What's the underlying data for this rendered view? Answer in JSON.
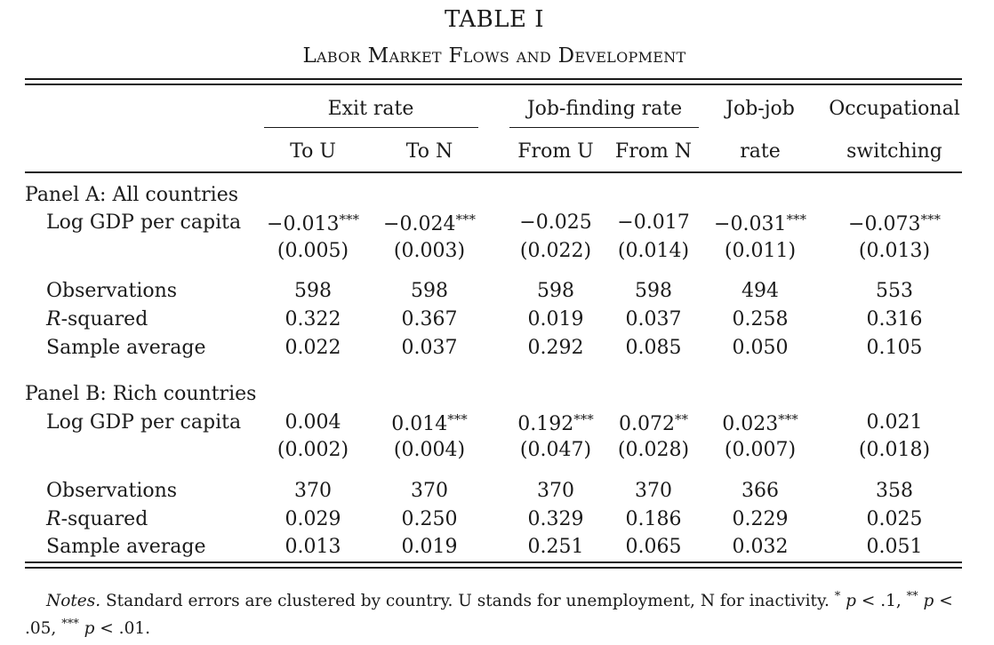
{
  "table": {
    "title": "TABLE I",
    "subtitle": "Labor Market Flows and Development",
    "header": {
      "group_exit": "Exit rate",
      "group_jobfinding": "Job-finding rate",
      "jobjob_top": "Job-job",
      "occ_top": "Occupational",
      "to_u": "To U",
      "to_n": "To N",
      "from_u": "From U",
      "from_n": "From N",
      "jobjob_bottom": "rate",
      "occ_bottom": "switching"
    },
    "panel_a": {
      "title": "Panel A: All countries",
      "gdp_label": "Log GDP per capita",
      "gdp": [
        "−0.013***",
        "−0.024***",
        "−0.025",
        "−0.017",
        "−0.031***",
        "−0.073***"
      ],
      "se": [
        "(0.005)",
        "(0.003)",
        "(0.022)",
        "(0.014)",
        "(0.011)",
        "(0.013)"
      ],
      "obs_label": "Observations",
      "obs": [
        "598",
        "598",
        "598",
        "598",
        "494",
        "553"
      ],
      "r2_label": "R-squared",
      "r2": [
        "0.322",
        "0.367",
        "0.019",
        "0.037",
        "0.258",
        "0.316"
      ],
      "avg_label": "Sample average",
      "avg": [
        "0.022",
        "0.037",
        "0.292",
        "0.085",
        "0.050",
        "0.105"
      ]
    },
    "panel_b": {
      "title": "Panel B: Rich countries",
      "gdp_label": "Log GDP per capita",
      "gdp": [
        "0.004",
        "0.014***",
        "0.192***",
        "0.072**",
        "0.023***",
        "0.021"
      ],
      "se": [
        "(0.002)",
        "(0.004)",
        "(0.047)",
        "(0.028)",
        "(0.007)",
        "(0.018)"
      ],
      "obs_label": "Observations",
      "obs": [
        "370",
        "370",
        "370",
        "370",
        "366",
        "358"
      ],
      "r2_label": "R-squared",
      "r2": [
        "0.029",
        "0.250",
        "0.329",
        "0.186",
        "0.229",
        "0.025"
      ],
      "avg_label": "Sample average",
      "avg": [
        "0.013",
        "0.019",
        "0.251",
        "0.065",
        "0.032",
        "0.051"
      ]
    },
    "notes": "Notes. Standard errors are clustered by country. U stands for unemployment, N for inactivity. * p < .1, ** p < .05, *** p < .01."
  }
}
